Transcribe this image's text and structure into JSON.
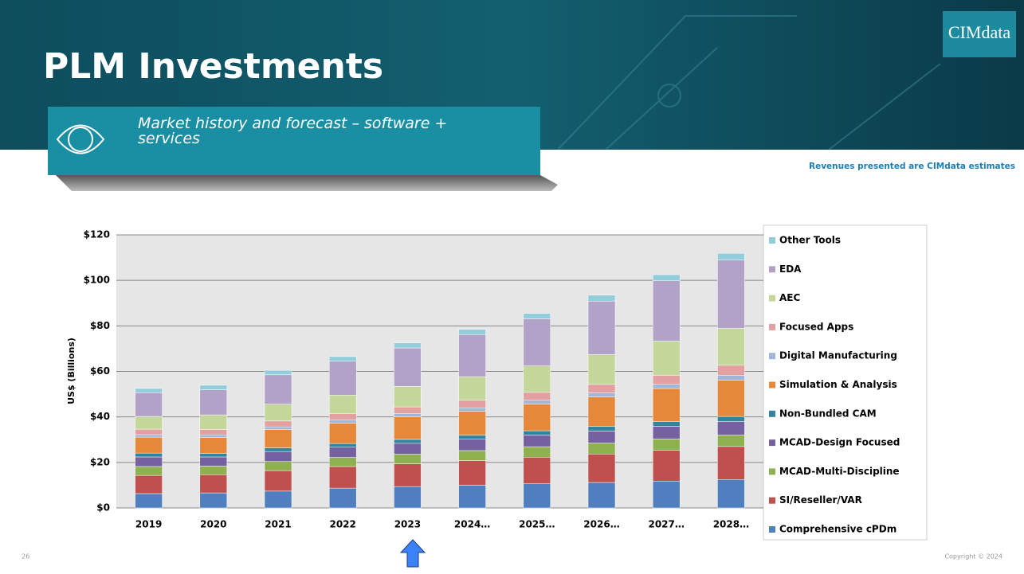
{
  "slide": {
    "title": "PLM Investments",
    "logo": "CIMdata",
    "subtitle": "Market history and forecast – software + services",
    "note": "Revenues presented are CIMdata estimates",
    "page_number": "26",
    "copyright": "Copyright © 2024"
  },
  "chart_data": {
    "type": "stacked_bar",
    "y_label": "US$ (Billions)",
    "categories": [
      "2019",
      "2020",
      "2021",
      "2022",
      "2023",
      "2024…",
      "2025…",
      "2026…",
      "2027…",
      "2028…"
    ],
    "ylim": [
      0,
      120
    ],
    "yticks": [
      {
        "value": 0,
        "label": "$0"
      },
      {
        "value": 20,
        "label": "$20"
      },
      {
        "value": 40,
        "label": "$40"
      },
      {
        "value": 60,
        "label": "$60"
      },
      {
        "value": 80,
        "label": "$80"
      },
      {
        "value": 100,
        "label": "$100"
      },
      {
        "value": 120,
        "label": "$120"
      }
    ],
    "grid": true,
    "legend": "right",
    "series": [
      {
        "name": "Comprehensive cPDm",
        "color": "#4f7fbf",
        "values": [
          6.3,
          6.6,
          7.4,
          8.7,
          9.4,
          10,
          10.6,
          11.2,
          11.8,
          12.5
        ]
      },
      {
        "name": "SI/Reseller/VAR",
        "color": "#c0504d",
        "values": [
          8,
          8,
          9,
          9.5,
          10,
          10.8,
          11.7,
          12.5,
          13.5,
          14.5
        ]
      },
      {
        "name": "MCAD-Multi-Discipline",
        "color": "#8eb04f",
        "values": [
          3.9,
          3.8,
          4,
          4,
          4.2,
          4.4,
          4.6,
          4.8,
          5,
          5
        ]
      },
      {
        "name": "MCAD-Design Focused",
        "color": "#7560a0",
        "values": [
          4.2,
          4,
          4.4,
          4.5,
          4.8,
          5,
          5.1,
          5.3,
          5.6,
          6
        ]
      },
      {
        "name": "Non-Bundled CAM",
        "color": "#31849b",
        "values": [
          1.7,
          1.6,
          1.6,
          1.6,
          1.7,
          1.8,
          1.9,
          2,
          2.1,
          2.2
        ]
      },
      {
        "name": "Simulation & Analysis",
        "color": "#e5883a",
        "values": [
          7,
          7,
          8,
          9,
          9.9,
          10.5,
          11.8,
          13,
          14.5,
          16
        ]
      },
      {
        "name": "Digital Manufacturing",
        "color": "#9db6d9",
        "values": [
          1.1,
          1.1,
          1.2,
          1.3,
          1.4,
          1.5,
          1.6,
          1.7,
          1.8,
          2
        ]
      },
      {
        "name": "Focused Apps",
        "color": "#e3a0a0",
        "values": [
          2.4,
          2.4,
          2.6,
          2.8,
          3,
          3.4,
          3.5,
          3.8,
          4,
          4.5
        ]
      },
      {
        "name": "AEC",
        "color": "#c4d79b",
        "values": [
          5.6,
          6.4,
          7.4,
          8.2,
          9,
          10.2,
          11.6,
          13.1,
          15,
          16.2
        ]
      },
      {
        "name": "EDA",
        "color": "#b3a2c7",
        "values": [
          10.5,
          11,
          12.9,
          14.9,
          16.9,
          18.6,
          20.7,
          23.5,
          26.5,
          30
        ]
      },
      {
        "name": "Other Tools",
        "color": "#92cddc",
        "values": [
          1.8,
          2,
          2,
          2,
          2.2,
          2.3,
          2.4,
          2.6,
          2.7,
          3
        ]
      }
    ]
  }
}
